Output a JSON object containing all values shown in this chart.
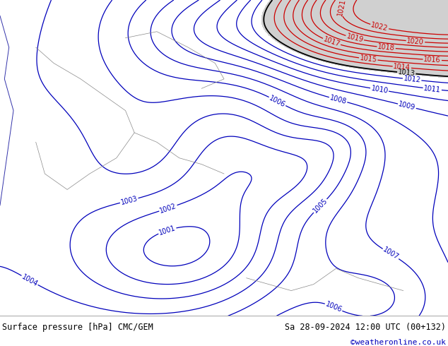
{
  "title_left": "Surface pressure [hPa] CMC/GEM",
  "title_right": "Sa 28-09-2024 12:00 UTC (00+132)",
  "copyright": "©weatheronline.co.uk",
  "bg_color": "#b5d978",
  "gray_color": "#d0d0d0",
  "blue_contour_color": "#0000bb",
  "red_contour_color": "#cc0000",
  "black_contour_color": "#000000",
  "bottom_bar_color": "#e0e0e0",
  "figsize": [
    6.34,
    4.9
  ],
  "dpi": 100,
  "font_size_bottom": 8.5,
  "font_size_copyright": 8.0,
  "font_size_contour_label": 7.0
}
